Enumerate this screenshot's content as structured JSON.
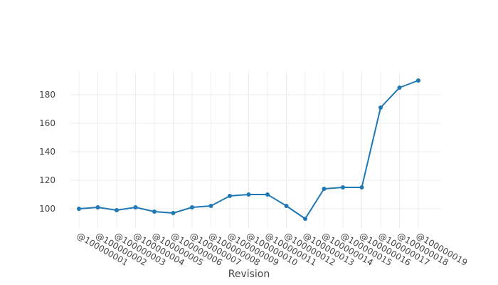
{
  "chart_data": {
    "type": "line",
    "title": "",
    "xlabel": "Revision",
    "ylabel": "",
    "x": [
      "@100000001",
      "@100000002",
      "@100000003",
      "@100000004",
      "@100000005",
      "@100000006",
      "@100000007",
      "@100000008",
      "@100000009",
      "@100000010",
      "@100000011",
      "@100000012",
      "@100000013",
      "@100000014",
      "@100000015",
      "@100000016",
      "@100000017",
      "@100000018",
      "@100000019"
    ],
    "series": [
      {
        "values": [
          100,
          101,
          99,
          101,
          98,
          97,
          101,
          102,
          109,
          110,
          110,
          102,
          93,
          114,
          115,
          115,
          171,
          185,
          190
        ]
      }
    ],
    "yticks": [
      100,
      120,
      140,
      160,
      180
    ],
    "ylim": [
      86.5,
      196.5
    ],
    "grid": true,
    "legend": "none",
    "colors": {
      "line": "#1f77b4",
      "grid": "#eeeeee",
      "text": "#444444"
    }
  }
}
